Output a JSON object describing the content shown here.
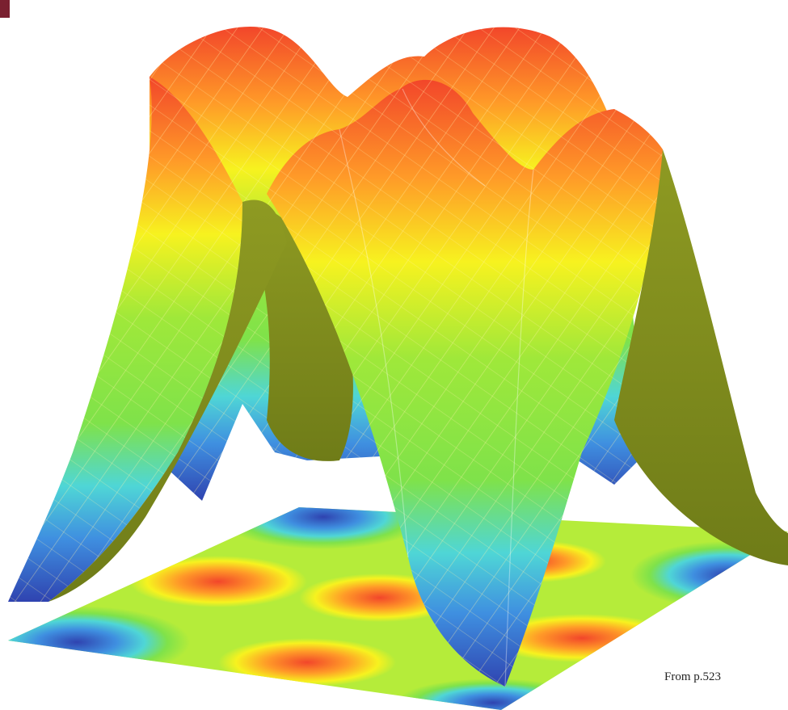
{
  "figure": {
    "caption": "From p.523"
  },
  "colors": {
    "background": "#ffffff",
    "corner_mark": "#7a2030",
    "surface_underside": "#7d8a1e",
    "mesh_line": "#ffe08a",
    "colormap": [
      "#2f43b0",
      "#3f8fe0",
      "#4fd6d6",
      "#7fe24a",
      "#f7f21f",
      "#ff9a28",
      "#f2462a"
    ]
  }
}
